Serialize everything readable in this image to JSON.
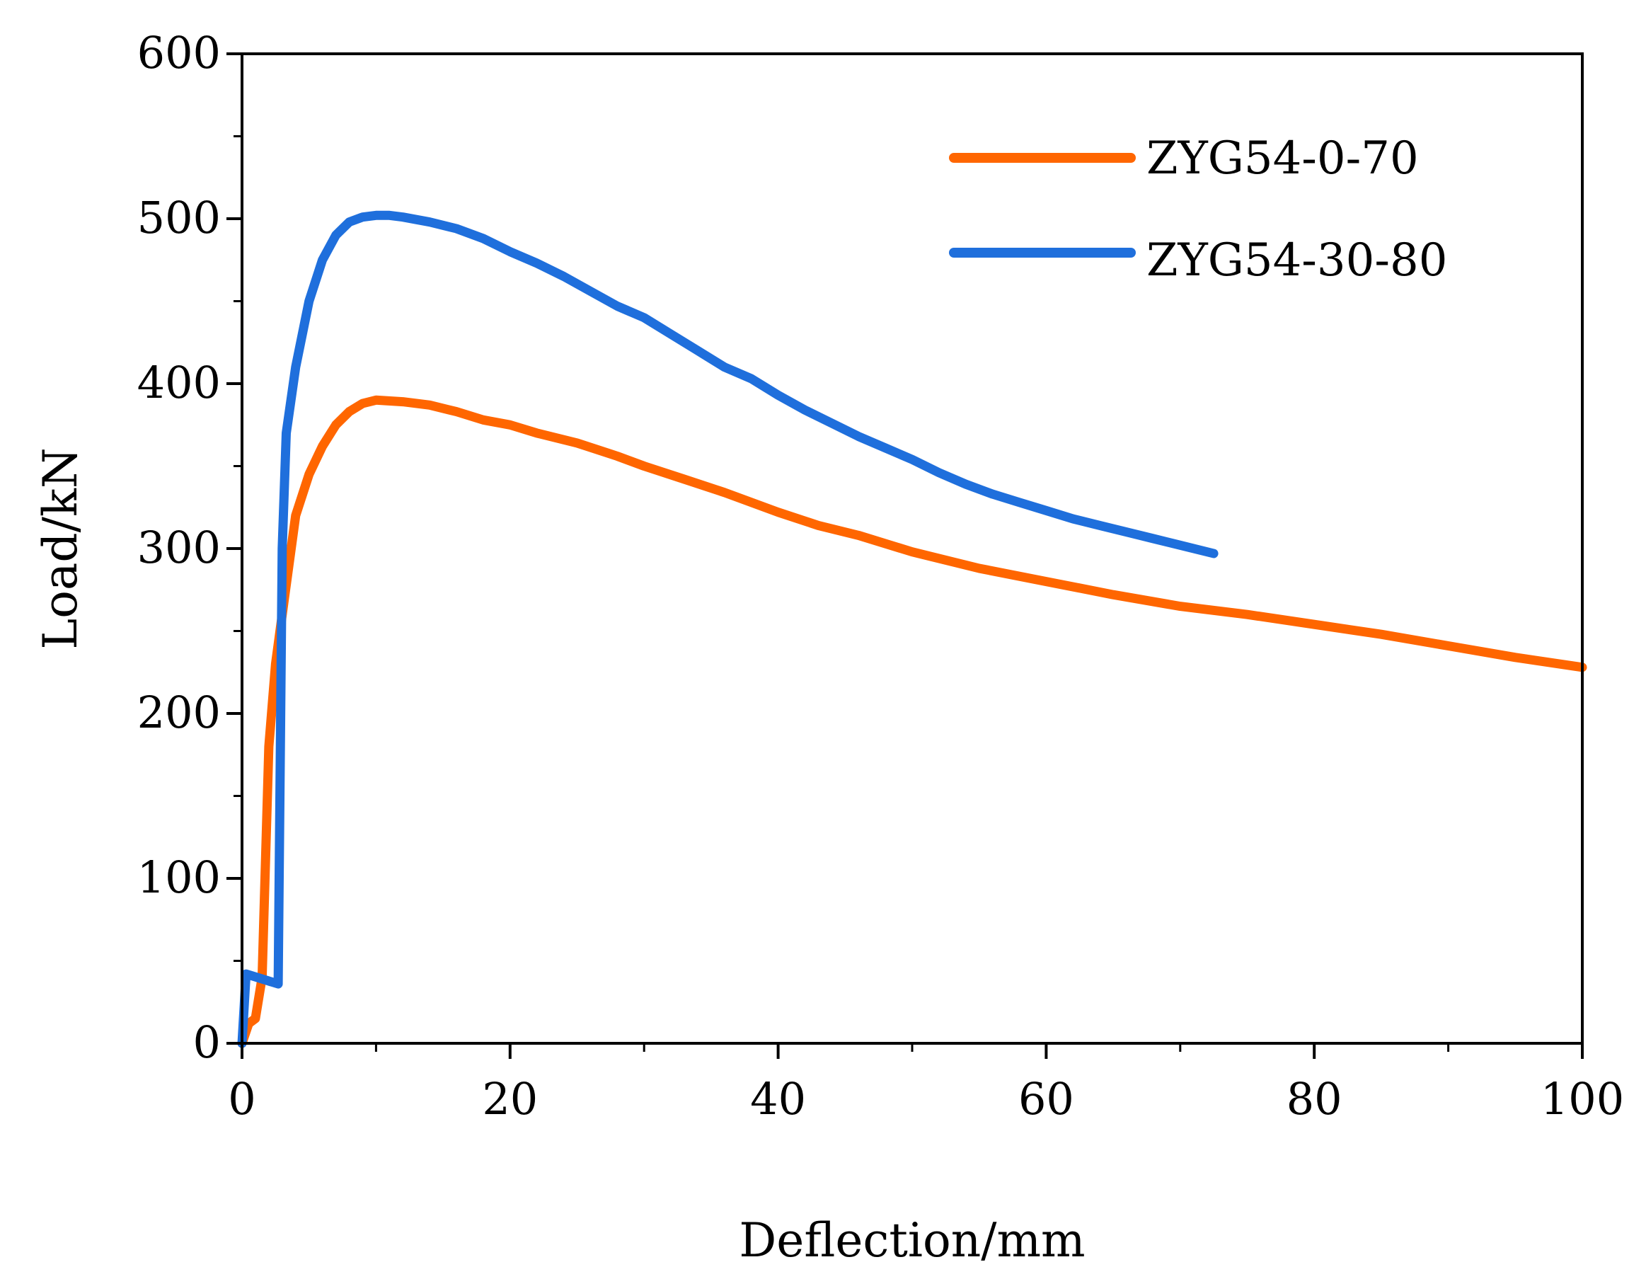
{
  "chart_data": {
    "type": "line",
    "xlabel": "Deflection/mm",
    "ylabel": "Load/kN",
    "xlim": [
      0,
      100
    ],
    "ylim": [
      0,
      600
    ],
    "xticks": [
      0,
      20,
      40,
      60,
      80,
      100
    ],
    "yticks": [
      0,
      100,
      200,
      300,
      400,
      500,
      600
    ],
    "xtick_labels": [
      "0",
      "20",
      "40",
      "60",
      "80",
      "100"
    ],
    "ytick_labels": [
      "0",
      "100",
      "200",
      "300",
      "400",
      "500",
      "600"
    ],
    "grid": false,
    "legend_position": "top-right",
    "series": [
      {
        "name": "ZYG54-0-70",
        "color": "#ff6600",
        "x": [
          0,
          0.5,
          1.0,
          1.5,
          2.0,
          2.5,
          3.0,
          3.5,
          4.0,
          5.0,
          6.0,
          7.0,
          8.0,
          9.0,
          10.0,
          12.0,
          14.0,
          16.0,
          18.0,
          20.0,
          22.0,
          25.0,
          28.0,
          30.0,
          33.0,
          36.0,
          40.0,
          43.0,
          46.0,
          50.0,
          55.0,
          60.0,
          65.0,
          70.0,
          75.0,
          80.0,
          85.0,
          90.0,
          95.0,
          100.0
        ],
        "y": [
          0,
          12,
          15,
          40,
          180,
          230,
          260,
          290,
          320,
          345,
          362,
          375,
          383,
          388,
          390,
          389,
          387,
          383,
          378,
          375,
          370,
          364,
          356,
          350,
          342,
          334,
          322,
          314,
          308,
          298,
          288,
          280,
          272,
          265,
          260,
          254,
          248,
          241,
          234,
          228
        ]
      },
      {
        "name": "ZYG54-30-80",
        "color": "#1f6fdc",
        "x": [
          0,
          0.3,
          2.7,
          3.0,
          3.3,
          4.0,
          5.0,
          6.0,
          7.0,
          8.0,
          9.0,
          10.0,
          11.0,
          12.0,
          14.0,
          16.0,
          18.0,
          20.0,
          22.0,
          24.0,
          26.0,
          28.0,
          30.0,
          32.0,
          34.0,
          36.0,
          38.0,
          40.0,
          42.0,
          44.0,
          46.0,
          48.0,
          50.0,
          52.0,
          54.0,
          56.0,
          58.0,
          60.0,
          62.0,
          64.0,
          66.0,
          68.0,
          70.0,
          72.5
        ],
        "y": [
          0,
          42,
          36,
          300,
          370,
          410,
          450,
          475,
          490,
          498,
          501,
          502,
          502,
          501,
          498,
          494,
          488,
          480,
          473,
          465,
          456,
          447,
          440,
          430,
          420,
          410,
          403,
          393,
          384,
          376,
          368,
          361,
          354,
          346,
          339,
          333,
          328,
          323,
          318,
          314,
          310,
          306,
          302,
          297
        ]
      }
    ]
  }
}
